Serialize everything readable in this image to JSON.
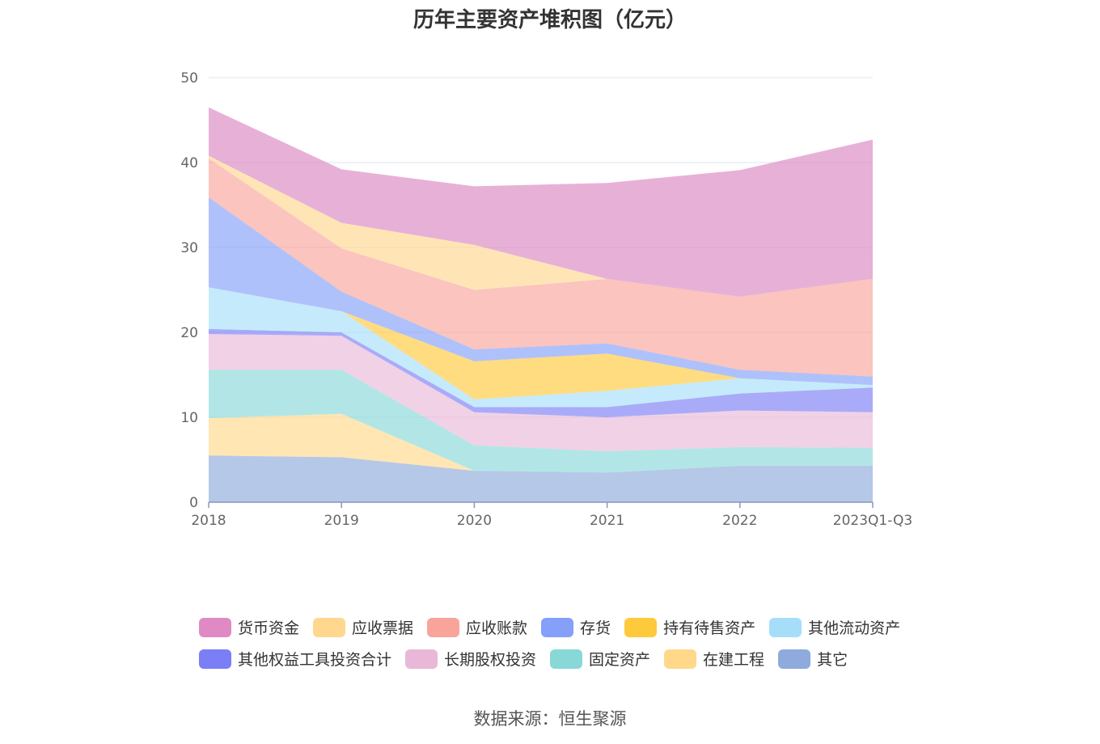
{
  "chart_data": {
    "type": "area",
    "stacked": true,
    "title": "历年主要资产堆积图（亿元）",
    "source": "数据来源：恒生聚源",
    "x": [
      "2018",
      "2019",
      "2020",
      "2021",
      "2022",
      "2023Q1-Q3"
    ],
    "ylim": [
      0,
      50
    ],
    "yticks": [
      "0",
      "10",
      "20",
      "30",
      "40",
      "50"
    ],
    "grid": true,
    "series": [
      {
        "name": "其它",
        "color": "#8faadc",
        "values": [
          5.5,
          5.3,
          3.7,
          3.5,
          4.3,
          4.3
        ]
      },
      {
        "name": "在建工程",
        "color": "#ffd88a",
        "values": [
          4.4,
          5.1,
          0.0,
          0.0,
          0.0,
          0.0
        ]
      },
      {
        "name": "固定资产",
        "color": "#88d8d8",
        "values": [
          5.7,
          5.2,
          3.0,
          2.5,
          2.2,
          2.1
        ]
      },
      {
        "name": "长期股权投资",
        "color": "#e9b8d8",
        "values": [
          4.2,
          4.0,
          3.9,
          4.0,
          4.3,
          4.2
        ]
      },
      {
        "name": "其他权益工具投资合计",
        "color": "#7b7ef5",
        "values": [
          0.6,
          0.4,
          0.6,
          1.2,
          2.0,
          2.9
        ]
      },
      {
        "name": "其他流动资产",
        "color": "#a6defa",
        "values": [
          4.9,
          2.5,
          0.9,
          1.9,
          1.8,
          0.3
        ]
      },
      {
        "name": "持有待售资产",
        "color": "#ffc93c",
        "values": [
          0.0,
          0.0,
          4.5,
          4.4,
          0.0,
          0.0
        ]
      },
      {
        "name": "存货",
        "color": "#84a0f8",
        "values": [
          10.6,
          2.3,
          1.4,
          1.2,
          1.0,
          1.0
        ]
      },
      {
        "name": "应收账款",
        "color": "#f9a49b",
        "values": [
          4.6,
          5.1,
          7.0,
          7.6,
          8.6,
          11.5
        ]
      },
      {
        "name": "应收票据",
        "color": "#ffd78f",
        "values": [
          0.3,
          3.0,
          5.3,
          0.0,
          0.0,
          0.0
        ]
      },
      {
        "name": "货币资金",
        "color": "#da87c2",
        "values": [
          5.7,
          6.3,
          6.9,
          11.3,
          14.9,
          16.4
        ]
      }
    ]
  },
  "legend": {
    "row1": [
      {
        "label": "货币资金",
        "color": "#df8ac4"
      },
      {
        "label": "应收票据",
        "color": "#ffd78f"
      },
      {
        "label": "应收账款",
        "color": "#f9a49b"
      },
      {
        "label": "存货",
        "color": "#84a0f8"
      },
      {
        "label": "持有待售资产",
        "color": "#ffc93c"
      },
      {
        "label": "其他流动资产",
        "color": "#a6defa"
      }
    ],
    "row2": [
      {
        "label": "其他权益工具投资合计",
        "color": "#7b7ef5"
      },
      {
        "label": "长期股权投资",
        "color": "#e9b8d8"
      },
      {
        "label": "固定资产",
        "color": "#88d8d8"
      },
      {
        "label": "在建工程",
        "color": "#ffd88a"
      },
      {
        "label": "其它",
        "color": "#8faadc"
      }
    ]
  }
}
